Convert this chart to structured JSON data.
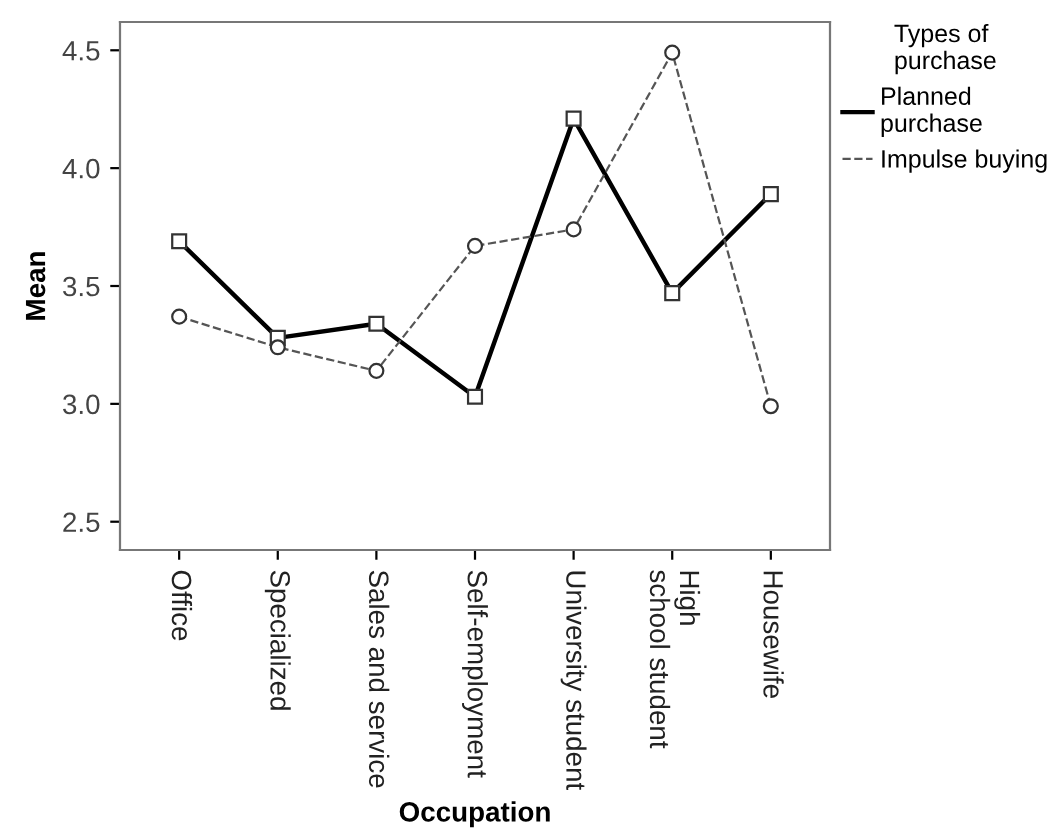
{
  "chart_data": {
    "type": "line",
    "xlabel": "Occupation",
    "ylabel": "Mean",
    "legend_title": "Types of\npurchase",
    "legend": "right",
    "categories": [
      "Office",
      "Specialized",
      "Sales and service",
      "Self-employment",
      "University student",
      "High\nschool student",
      "Housewife"
    ],
    "series": [
      {
        "name": "Planned\npurchase",
        "color": "#000000",
        "marker": "square",
        "line_style": "solid",
        "values": [
          3.69,
          3.28,
          3.34,
          3.03,
          4.21,
          3.47,
          3.89
        ]
      },
      {
        "name": "Impulse buying",
        "color": "#555555",
        "marker": "circle",
        "line_style": "dashed",
        "values": [
          3.37,
          3.24,
          3.14,
          3.67,
          3.74,
          4.49,
          2.99
        ]
      }
    ],
    "ylim": [
      2.38,
      4.62
    ],
    "yticks": [
      2.5,
      {
        "value": 3,
        "label": "3.0"
      },
      3.5,
      {
        "value": 4,
        "label": "4.0"
      },
      4.5
    ],
    "grid": false
  }
}
